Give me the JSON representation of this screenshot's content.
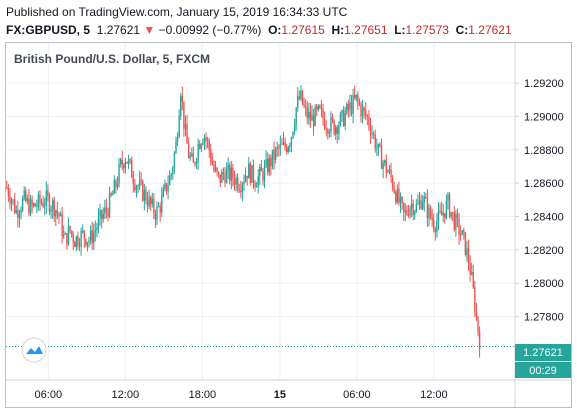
{
  "header": {
    "published": "Published on TradingView.com, January 15, 2019 16:34:33 UTC",
    "symbol": "FX:GBPUSD, 5",
    "last": "1.27621",
    "arrow": "▼",
    "change": "−0.00992 (−0.77%)",
    "o_label": "O:",
    "o": "1.27615",
    "h_label": "H:",
    "h": "1.27651",
    "l_label": "L:",
    "l": "1.27573",
    "c_label": "C:",
    "c": "1.27621"
  },
  "colors": {
    "up": "#26a69a",
    "down": "#ef5350",
    "last_line": "#26a69a"
  },
  "logo": "tradingview-logo-icon",
  "chart_data": {
    "type": "candlestick",
    "title": "British Pound/U.S. Dollar, 5, FXCM",
    "ylim": [
      1.2742,
      1.2944
    ],
    "y_ticks": [
      "1.27800",
      "1.28000",
      "1.28200",
      "1.28400",
      "1.28600",
      "1.28800",
      "1.29000",
      "1.29200"
    ],
    "x_ticks": [
      {
        "label": "06:00",
        "pos": 0.0831,
        "bold": false
      },
      {
        "label": "12:00",
        "pos": 0.2344,
        "bold": false
      },
      {
        "label": "18:00",
        "pos": 0.3858,
        "bold": false
      },
      {
        "label": "15",
        "pos": 0.5381,
        "bold": true
      },
      {
        "label": "06:00",
        "pos": 0.6894,
        "bold": false
      },
      {
        "label": "12:00",
        "pos": 0.8407,
        "bold": false
      }
    ],
    "last_price": "1.27621",
    "countdown": "00:29",
    "grid": true,
    "path": [
      [
        0.0,
        1.2858
      ],
      [
        0.012,
        1.285
      ],
      [
        0.02,
        1.2843
      ],
      [
        0.035,
        1.285
      ],
      [
        0.05,
        1.2845
      ],
      [
        0.065,
        1.2848
      ],
      [
        0.08,
        1.285
      ],
      [
        0.095,
        1.2846
      ],
      [
        0.105,
        1.284
      ],
      [
        0.115,
        1.2825
      ],
      [
        0.125,
        1.2832
      ],
      [
        0.135,
        1.2826
      ],
      [
        0.15,
        1.2829
      ],
      [
        0.165,
        1.2826
      ],
      [
        0.175,
        1.2832
      ],
      [
        0.185,
        1.2838
      ],
      [
        0.2,
        1.2845
      ],
      [
        0.215,
        1.2858
      ],
      [
        0.225,
        1.287
      ],
      [
        0.235,
        1.2876
      ],
      [
        0.245,
        1.2868
      ],
      [
        0.255,
        1.286
      ],
      [
        0.265,
        1.2856
      ],
      [
        0.275,
        1.2852
      ],
      [
        0.285,
        1.2846
      ],
      [
        0.295,
        1.2842
      ],
      [
        0.305,
        1.2848
      ],
      [
        0.315,
        1.2858
      ],
      [
        0.325,
        1.2866
      ],
      [
        0.335,
        1.2885
      ],
      [
        0.343,
        1.2918
      ],
      [
        0.35,
        1.2895
      ],
      [
        0.358,
        1.2878
      ],
      [
        0.368,
        1.287
      ],
      [
        0.378,
        1.2884
      ],
      [
        0.388,
        1.289
      ],
      [
        0.398,
        1.2882
      ],
      [
        0.408,
        1.2868
      ],
      [
        0.418,
        1.2862
      ],
      [
        0.43,
        1.2866
      ],
      [
        0.445,
        1.2864
      ],
      [
        0.46,
        1.286
      ],
      [
        0.475,
        1.2868
      ],
      [
        0.49,
        1.2862
      ],
      [
        0.505,
        1.2866
      ],
      [
        0.52,
        1.2873
      ],
      [
        0.535,
        1.288
      ],
      [
        0.55,
        1.2882
      ],
      [
        0.56,
        1.2888
      ],
      [
        0.57,
        1.2905
      ],
      [
        0.578,
        1.2912
      ],
      [
        0.588,
        1.2902
      ],
      [
        0.6,
        1.2898
      ],
      [
        0.615,
        1.2902
      ],
      [
        0.63,
        1.2896
      ],
      [
        0.645,
        1.2894
      ],
      [
        0.66,
        1.2898
      ],
      [
        0.675,
        1.2905
      ],
      [
        0.688,
        1.291
      ],
      [
        0.7,
        1.2903
      ],
      [
        0.712,
        1.2898
      ],
      [
        0.722,
        1.2888
      ],
      [
        0.732,
        1.2878
      ],
      [
        0.745,
        1.287
      ],
      [
        0.758,
        1.2862
      ],
      [
        0.77,
        1.285
      ],
      [
        0.782,
        1.284
      ],
      [
        0.795,
        1.2848
      ],
      [
        0.808,
        1.2845
      ],
      [
        0.818,
        1.2852
      ],
      [
        0.83,
        1.2842
      ],
      [
        0.842,
        1.2836
      ],
      [
        0.855,
        1.284
      ],
      [
        0.868,
        1.2848
      ],
      [
        0.88,
        1.2838
      ],
      [
        0.89,
        1.2832
      ],
      [
        0.9,
        1.2825
      ],
      [
        0.91,
        1.2812
      ],
      [
        0.918,
        1.2795
      ],
      [
        0.926,
        1.2775
      ],
      [
        0.932,
        1.2763
      ]
    ]
  }
}
